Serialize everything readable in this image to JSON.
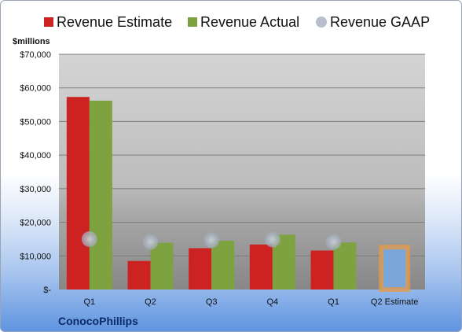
{
  "chart_data": {
    "type": "bar",
    "units_label": "$millions",
    "company": "ConocoPhillips",
    "categories": [
      "Q1",
      "Q2",
      "Q3",
      "Q4",
      "Q1",
      "Q2 Estimate"
    ],
    "series": [
      {
        "name": "Revenue Estimate",
        "color": "#cc2222",
        "values": [
          57300,
          8500,
          12300,
          13400,
          11600,
          null
        ]
      },
      {
        "name": "Revenue Actual",
        "color": "#7fa241",
        "values": [
          56200,
          13900,
          14500,
          16300,
          14000,
          null
        ]
      },
      {
        "name": "Revenue GAAP",
        "color": "#b7bfcc",
        "values": [
          15000,
          14200,
          14700,
          14900,
          14200,
          null
        ]
      }
    ],
    "forecast": {
      "category": "Q2 Estimate",
      "value": 12600,
      "fill": "#7aa6dc",
      "outline": "#e89a44"
    },
    "y_tick_labels": [
      "$-",
      "$10,000",
      "$20,000",
      "$30,000",
      "$40,000",
      "$50,000",
      "$60,000",
      "$70,000"
    ],
    "ylim": [
      0,
      70000
    ],
    "grid": true,
    "legend_position": "top"
  }
}
